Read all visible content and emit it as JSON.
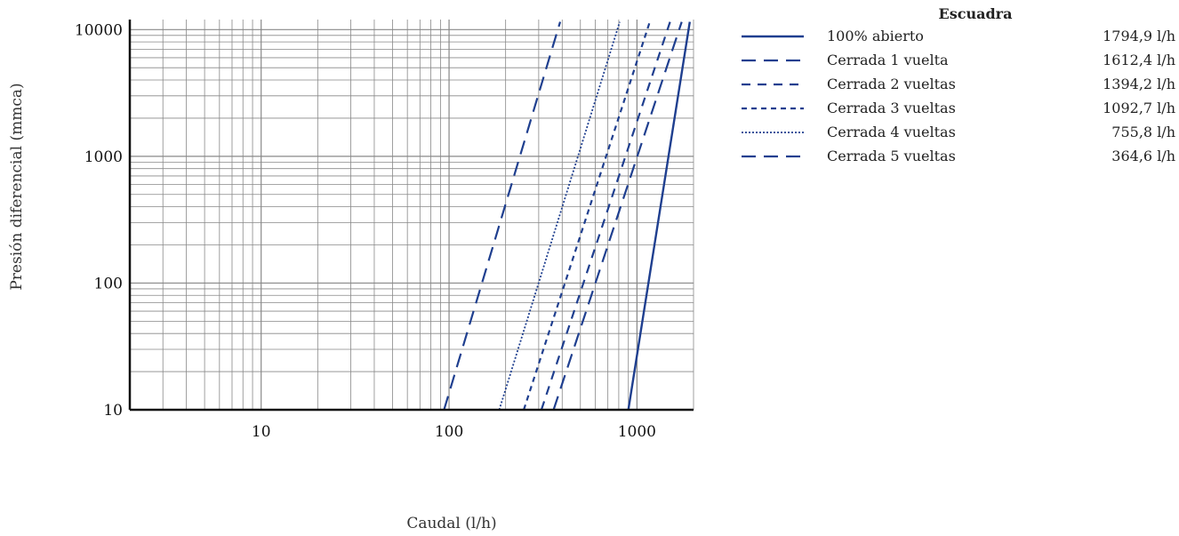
{
  "colors": {
    "series": "#1f3f8f",
    "grid": "#888888",
    "axis": "#111111"
  },
  "chart_data": {
    "type": "line",
    "xlabel": "Caudal (l/h)",
    "ylabel": "Presión diferencial (mmca)",
    "xscale": "log",
    "yscale": "log",
    "xlim": [
      2,
      2000
    ],
    "ylim": [
      10,
      12000
    ],
    "x_ticks": [
      "10",
      "100",
      "1000"
    ],
    "y_ticks": [
      "10",
      "100",
      "1000",
      "10000"
    ],
    "grid": true,
    "legend_placement": "top-right",
    "legend_title": "Escuadra",
    "series": [
      {
        "name": "100% abierto",
        "value_label": "1794,9 l/h",
        "style": "solid",
        "x": [
          900,
          1910
        ],
        "y": [
          10,
          11500
        ]
      },
      {
        "name": "Cerrada 1 vuelta",
        "value_label": "1612,4 l/h",
        "style": "dash-long",
        "x": [
          360,
          1730
        ],
        "y": [
          10,
          11500
        ]
      },
      {
        "name": "Cerrada 2 vueltas",
        "value_label": "1394,2 l/h",
        "style": "dash-medium",
        "x": [
          310,
          1500
        ],
        "y": [
          10,
          11500
        ]
      },
      {
        "name": "Cerrada 3 vueltas",
        "value_label": "1092,7 l/h",
        "style": "dash-short",
        "x": [
          250,
          1170
        ],
        "y": [
          10,
          11500
        ]
      },
      {
        "name": "Cerrada 4 vueltas",
        "value_label": "755,8 l/h",
        "style": "dotted",
        "x": [
          185,
          810
        ],
        "y": [
          10,
          11500
        ]
      },
      {
        "name": "Cerrada 5 vueltas",
        "value_label": "364,6 l/h",
        "style": "dash-long",
        "x": [
          94,
          390
        ],
        "y": [
          10,
          11500
        ]
      }
    ]
  }
}
